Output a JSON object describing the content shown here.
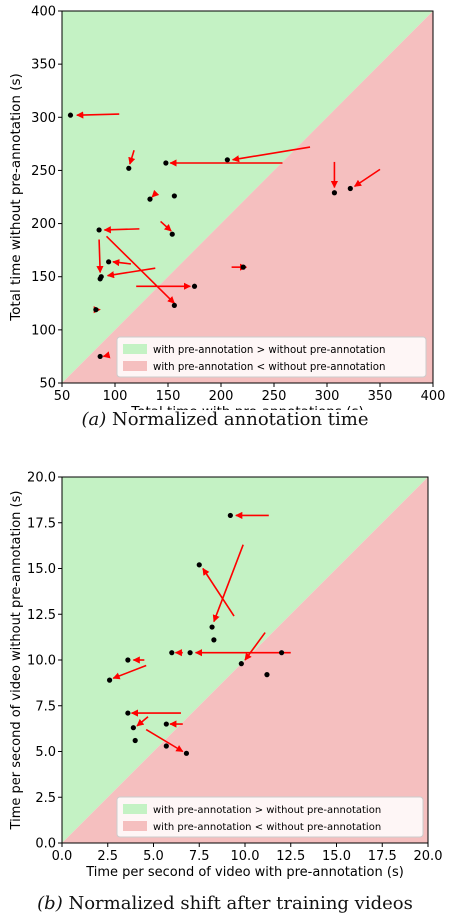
{
  "chart_data": [
    {
      "type": "scatter",
      "xlabel": "Total time with pre-annotations (s)",
      "ylabel": "Total time without pre-annotation (s)",
      "xlim": [
        50,
        400
      ],
      "ylim": [
        50,
        400
      ],
      "xticks": [
        "50",
        "100",
        "150",
        "200",
        "250",
        "300",
        "350",
        "400"
      ],
      "yticks": [
        "50",
        "100",
        "150",
        "200",
        "250",
        "300",
        "350",
        "400"
      ],
      "region_upper_color": "#c4f2c4",
      "region_lower_color": "#f5bfbf",
      "point_color": "#000000",
      "arrow_color": "#ff0000",
      "legend": {
        "position": "lower-right",
        "entries": [
          {
            "label": "with pre-annotation > without pre-annotation",
            "color": "#c4f2c4"
          },
          {
            "label": "with pre-annotation < without pre-annotation",
            "color": "#f5bfbf"
          }
        ]
      },
      "points": [
        [
          58,
          302
        ],
        [
          113,
          252
        ],
        [
          148,
          257
        ],
        [
          206,
          260
        ],
        [
          307,
          229
        ],
        [
          322,
          233
        ],
        [
          133,
          223
        ],
        [
          156,
          226
        ],
        [
          85,
          194
        ],
        [
          154,
          190
        ],
        [
          94,
          164
        ],
        [
          87,
          150
        ],
        [
          86,
          148
        ],
        [
          156,
          123
        ],
        [
          175,
          141
        ],
        [
          221,
          159
        ],
        [
          82,
          119
        ],
        [
          86,
          75
        ]
      ],
      "arrows": [
        [
          [
            104,
            303
          ],
          [
            64,
            302
          ]
        ],
        [
          [
            118,
            269
          ],
          [
            114,
            256
          ]
        ],
        [
          [
            258,
            257
          ],
          [
            152,
            257
          ]
        ],
        [
          [
            284,
            272
          ],
          [
            211,
            260
          ]
        ],
        [
          [
            307,
            258
          ],
          [
            307,
            234
          ]
        ],
        [
          [
            350,
            251
          ],
          [
            326,
            235
          ]
        ],
        [
          [
            138,
            228
          ],
          [
            135,
            225
          ]
        ],
        [
          [
            143,
            202
          ],
          [
            153,
            193
          ]
        ],
        [
          [
            123,
            195
          ],
          [
            90,
            194
          ]
        ],
        [
          [
            115,
            162
          ],
          [
            98,
            164
          ]
        ],
        [
          [
            85,
            185
          ],
          [
            86,
            154
          ]
        ],
        [
          [
            138,
            158
          ],
          [
            93,
            151
          ]
        ],
        [
          [
            92,
            188
          ],
          [
            156,
            125
          ]
        ],
        [
          [
            120,
            141
          ],
          [
            171,
            141
          ]
        ],
        [
          [
            210,
            159
          ],
          [
            224,
            159
          ]
        ],
        [
          [
            86,
            119
          ],
          [
            86,
            119
          ]
        ],
        [
          [
            93,
            76
          ],
          [
            89,
            75
          ]
        ]
      ]
    },
    {
      "type": "scatter",
      "xlabel": "Time per second of video with pre-annotation (s)",
      "ylabel": "Time per second of video without pre-annotation (s)",
      "xlim": [
        0,
        20
      ],
      "ylim": [
        0,
        20
      ],
      "xticks": [
        "0.0",
        "2.5",
        "5.0",
        "7.5",
        "10.0",
        "12.5",
        "15.0",
        "17.5",
        "20.0"
      ],
      "yticks": [
        "0.0",
        "2.5",
        "5.0",
        "7.5",
        "10.0",
        "12.5",
        "15.0",
        "17.5",
        "20.0"
      ],
      "region_upper_color": "#c4f2c4",
      "region_lower_color": "#f5bfbf",
      "point_color": "#000000",
      "arrow_color": "#ff0000",
      "legend": {
        "position": "lower-right",
        "entries": [
          {
            "label": "with pre-annotation > without pre-annotation",
            "color": "#c4f2c4"
          },
          {
            "label": "with pre-annotation < without pre-annotation",
            "color": "#f5bfbf"
          }
        ]
      },
      "points": [
        [
          9.2,
          17.9
        ],
        [
          7.5,
          15.2
        ],
        [
          8.2,
          11.8
        ],
        [
          8.3,
          11.1
        ],
        [
          6.0,
          10.4
        ],
        [
          7.0,
          10.4
        ],
        [
          9.8,
          9.8
        ],
        [
          12.0,
          10.4
        ],
        [
          11.2,
          9.2
        ],
        [
          3.6,
          10.0
        ],
        [
          2.6,
          8.9
        ],
        [
          3.6,
          7.1
        ],
        [
          3.9,
          6.3
        ],
        [
          4.0,
          5.6
        ],
        [
          5.7,
          6.5
        ],
        [
          5.7,
          5.3
        ],
        [
          6.8,
          4.9
        ]
      ],
      "arrows": [
        [
          [
            11.3,
            17.9
          ],
          [
            9.5,
            17.9
          ]
        ],
        [
          [
            9.4,
            12.4
          ],
          [
            7.7,
            15.0
          ]
        ],
        [
          [
            9.9,
            16.3
          ],
          [
            8.3,
            12.1
          ]
        ],
        [
          [
            6.6,
            10.4
          ],
          [
            6.2,
            10.4
          ]
        ],
        [
          [
            12.5,
            10.4
          ],
          [
            7.3,
            10.4
          ]
        ],
        [
          [
            11.1,
            11.5
          ],
          [
            10.0,
            10.0
          ]
        ],
        [
          [
            4.5,
            10.0
          ],
          [
            3.9,
            10.0
          ]
        ],
        [
          [
            4.6,
            9.7
          ],
          [
            2.8,
            9.0
          ]
        ],
        [
          [
            6.5,
            7.1
          ],
          [
            3.8,
            7.1
          ]
        ],
        [
          [
            4.7,
            6.9
          ],
          [
            4.1,
            6.4
          ]
        ],
        [
          [
            4.6,
            6.2
          ],
          [
            6.6,
            5.0
          ]
        ],
        [
          [
            6.6,
            6.5
          ],
          [
            5.9,
            6.5
          ]
        ]
      ]
    }
  ],
  "captions": [
    {
      "label": "(a)",
      "text": " Normalized annotation time"
    },
    {
      "label": "(b)",
      "text": " Normalized shift after training videos"
    }
  ]
}
